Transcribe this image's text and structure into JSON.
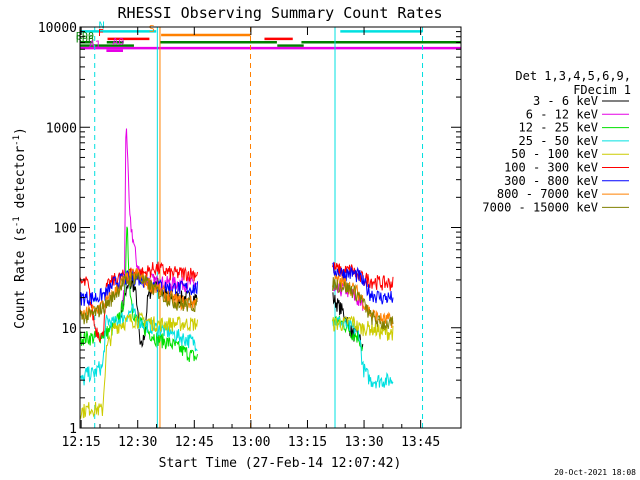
{
  "chart_data": {
    "type": "line",
    "title": "RHESSI Observing Summary Count Rates",
    "xlabel": "Start Time (27-Feb-14 12:07:42)",
    "ylabel_main": "Count Rate (s",
    "ylabel_sup": "-1",
    "ylabel_tail": " detector",
    "ylabel_end": ")",
    "yscale": "log",
    "ylim": [
      1,
      10000
    ],
    "xlim_min": [
      8,
      109
    ],
    "x_unit": "minutes after 12:07:42",
    "x_ticks": [
      {
        "t": 8.3,
        "label": "12:15"
      },
      {
        "t": 23.3,
        "label": "12:30"
      },
      {
        "t": 38.3,
        "label": "12:45"
      },
      {
        "t": 53.3,
        "label": "13:00"
      },
      {
        "t": 68.3,
        "label": "13:15"
      },
      {
        "t": 83.3,
        "label": "13:30"
      },
      {
        "t": 98.3,
        "label": "13:45"
      }
    ],
    "y_ticks": [
      {
        "v": 1,
        "label": "1"
      },
      {
        "v": 10,
        "label": "10"
      },
      {
        "v": 100,
        "label": "100"
      },
      {
        "v": 1000,
        "label": "1000"
      },
      {
        "v": 10000,
        "label": "10000"
      }
    ],
    "legend": {
      "title1": "Det 1,3,4,5,6,9,",
      "title2": "FDecim 1",
      "placement": "right"
    },
    "series": [
      {
        "name": "3 - 6 keV",
        "color": "#000000",
        "x": [
          16,
          18,
          19,
          20,
          21,
          22,
          23,
          23.5,
          24,
          25,
          26,
          27,
          28,
          30,
          32,
          35,
          75,
          78,
          80,
          82,
          83
        ],
        "y": [
          null,
          null,
          15,
          22,
          26,
          28,
          20,
          11,
          6,
          8,
          20,
          25,
          30,
          22,
          20,
          20,
          20,
          14,
          9,
          8,
          6
        ]
      },
      {
        "name": "6 - 12 keV",
        "color": "#e600e6",
        "x": [
          16,
          18,
          19,
          19.8,
          20.2,
          20.8,
          21.2,
          21.8,
          22.5,
          23,
          24,
          25,
          27,
          30,
          33,
          35,
          75,
          78,
          80,
          82,
          83
        ],
        "y": [
          null,
          null,
          14,
          25,
          1500,
          300,
          120,
          90,
          60,
          45,
          35,
          30,
          30,
          28,
          28,
          28,
          22,
          25,
          22,
          18,
          17
        ]
      },
      {
        "name": "12 - 25 keV",
        "color": "#00e000",
        "x": [
          8,
          12,
          15,
          17,
          18,
          19,
          20,
          20.5,
          21,
          22,
          23,
          25,
          28,
          32,
          35,
          39,
          75,
          78,
          80,
          82,
          83
        ],
        "y": [
          8,
          8,
          9,
          10,
          12,
          15,
          22,
          150,
          30,
          15,
          12,
          10,
          8,
          7,
          6,
          5,
          12,
          11,
          9,
          8,
          6
        ]
      },
      {
        "name": "25 - 50 keV",
        "color": "#00e0e0",
        "x": [
          8,
          9,
          9.5,
          12,
          13,
          14,
          15,
          17,
          18,
          20,
          21,
          22,
          23,
          25,
          28,
          32,
          35,
          39,
          75,
          78,
          80,
          82,
          83,
          85,
          88,
          91
        ],
        "y": [
          3,
          3,
          3.5,
          3.5,
          4,
          4,
          12,
          11,
          12,
          13,
          14,
          15,
          12,
          11,
          10,
          9,
          8,
          7,
          12,
          11,
          10,
          9,
          4,
          3,
          3,
          3
        ]
      },
      {
        "name": "50 - 100 keV",
        "color": "#cccc00",
        "x": [
          8,
          9,
          11,
          14,
          15,
          17,
          19,
          21,
          23,
          25,
          28,
          32,
          35,
          39,
          75,
          78,
          80,
          82,
          85,
          88,
          91
        ],
        "y": [
          1.5,
          1.5,
          1.6,
          1.5,
          6,
          10,
          11,
          12,
          12,
          12,
          11,
          11,
          11,
          11,
          11,
          11,
          12,
          10,
          10,
          9,
          9
        ]
      },
      {
        "name": "100 - 300 keV",
        "color": "#ff0000",
        "x": [
          8,
          10,
          12,
          14,
          15,
          17,
          19,
          21,
          23,
          25,
          28,
          32,
          35,
          39,
          75,
          78,
          80,
          82,
          85,
          88,
          91
        ],
        "y": [
          28,
          28,
          10,
          8,
          25,
          30,
          32,
          35,
          35,
          35,
          40,
          35,
          35,
          35,
          40,
          36,
          38,
          32,
          30,
          28,
          28
        ]
      },
      {
        "name": "300 - 800 keV",
        "color": "#0000ff",
        "x": [
          8,
          10,
          12,
          15,
          17,
          19,
          21,
          23,
          25,
          28,
          32,
          35,
          39,
          75,
          78,
          80,
          82,
          85,
          88,
          91
        ],
        "y": [
          20,
          20,
          20,
          22,
          28,
          30,
          32,
          32,
          30,
          27,
          25,
          25,
          25,
          38,
          35,
          35,
          33,
          22,
          20,
          20
        ]
      },
      {
        "name": "800 - 7000 keV",
        "color": "#ff8000",
        "x": [
          8,
          10,
          12,
          15,
          17,
          19,
          21,
          23,
          25,
          28,
          32,
          35,
          39,
          75,
          78,
          80,
          82,
          85,
          88,
          91
        ],
        "y": [
          13,
          14,
          15,
          18,
          22,
          28,
          32,
          35,
          30,
          25,
          20,
          18,
          18,
          30,
          28,
          25,
          22,
          14,
          12,
          12
        ]
      },
      {
        "name": "7000 - 15000 keV",
        "color": "#808000",
        "x": [
          8,
          10,
          12,
          15,
          17,
          19,
          21,
          23,
          25,
          28,
          32,
          35,
          39,
          75,
          78,
          80,
          82,
          85,
          88,
          91
        ],
        "y": [
          13,
          13,
          14,
          17,
          21,
          27,
          30,
          33,
          29,
          24,
          19,
          17,
          17,
          28,
          26,
          24,
          21,
          13,
          11,
          11
        ]
      }
    ],
    "vlines": [
      {
        "t": 11.9,
        "style": "dashed",
        "color": "#00e0e0"
      },
      {
        "t": 28.5,
        "style": "solid",
        "color": "#00e0e0"
      },
      {
        "t": 29.2,
        "style": "solid",
        "color": "#ff8000"
      },
      {
        "t": 53.2,
        "style": "dashed",
        "color": "#ff8000"
      },
      {
        "t": 75.6,
        "style": "solid",
        "color": "#00e0e0"
      },
      {
        "t": 98.8,
        "style": "dashed",
        "color": "#00e0e0"
      }
    ],
    "flag_bars": [
      {
        "label": "N",
        "color": "#00e0e0",
        "y": 9050,
        "label_t": 14.0,
        "segments": [
          [
            0,
            28.2
          ],
          [
            77,
            98.8
          ]
        ]
      },
      {
        "label": "S",
        "color": "#ff8000",
        "y": 8330,
        "label_t": 27.3,
        "segments": [
          [
            29.5,
            53.2
          ]
        ]
      },
      {
        "label": "F",
        "color": "#ff0000",
        "y": 7620,
        "label_t": 13.8,
        "segments": [
          [
            15.3,
            26.4
          ],
          [
            56.9,
            64.4
          ]
        ]
      },
      {
        "label": "RD0",
        "color": "#008000",
        "y": 7050,
        "label_t": 4.4,
        "segments": [
          [
            0,
            11.5
          ],
          [
            15.1,
            19.6
          ],
          [
            29.2,
            60.2
          ],
          [
            66.7,
            109
          ]
        ]
      },
      {
        "label": "RD6",
        "color": "#008000",
        "y": 6520,
        "label_t": 0,
        "segments": [
          [
            0,
            22.3
          ],
          [
            60.3,
            67.3
          ]
        ]
      },
      {
        "label": "A0",
        "color": "#e600e6",
        "y": 6150,
        "label_t": 17.6,
        "segments": [
          [
            0,
            109
          ]
        ]
      },
      {
        "label": "A1",
        "color": "#e600e6",
        "y": 5800,
        "label_t": 11.4,
        "segments": [
          [
            15.0,
            19.4
          ]
        ]
      }
    ]
  },
  "timestamp": "20-Oct-2021 18:08"
}
